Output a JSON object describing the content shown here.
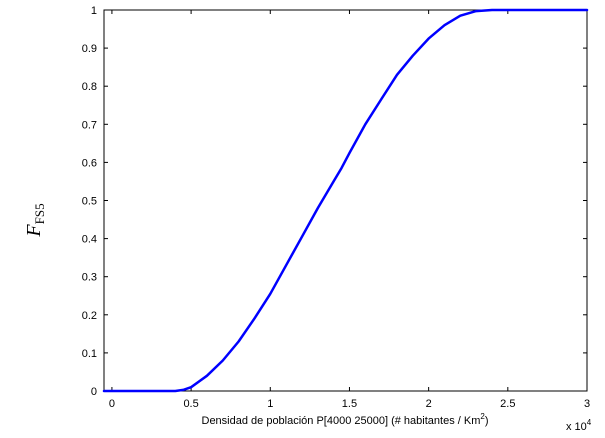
{
  "chart_data": {
    "type": "line",
    "title": "",
    "xlabel": {
      "main": "Densidad de población  P[4000 25000] (# habitantes / Km",
      "sup": "2",
      "end": ")"
    },
    "ylabel": {
      "main": "F",
      "sub": "FS5"
    },
    "x_multiplier": {
      "base": "x 10",
      "exp": "4"
    },
    "xlim": [
      -0.05,
      3
    ],
    "ylim": [
      0,
      1
    ],
    "xticks": [
      0,
      0.5,
      1,
      1.5,
      2,
      2.5,
      3
    ],
    "xtick_labels": [
      "0",
      "0.5",
      "1",
      "1.5",
      "2",
      "2.5",
      "3"
    ],
    "yticks": [
      0,
      0.1,
      0.2,
      0.3,
      0.4,
      0.5,
      0.6,
      0.7,
      0.8,
      0.9,
      1
    ],
    "ytick_labels": [
      "0",
      "0.1",
      "0.2",
      "0.3",
      "0.4",
      "0.5",
      "0.6",
      "0.7",
      "0.8",
      "0.9",
      "1"
    ],
    "grid": false,
    "series": [
      {
        "color": "#0000ff",
        "x": [
          -0.05,
          0.4,
          0.45,
          0.5,
          0.6,
          0.7,
          0.8,
          0.9,
          1.0,
          1.1,
          1.2,
          1.3,
          1.4,
          1.45,
          1.5,
          1.6,
          1.7,
          1.8,
          1.9,
          2.0,
          2.1,
          2.2,
          2.3,
          2.4,
          2.45,
          2.5,
          3.0
        ],
        "y": [
          0,
          0,
          0.003,
          0.01,
          0.04,
          0.08,
          0.13,
          0.19,
          0.255,
          0.33,
          0.405,
          0.48,
          0.55,
          0.585,
          0.625,
          0.7,
          0.765,
          0.83,
          0.88,
          0.925,
          0.96,
          0.985,
          0.997,
          1.0,
          1.0,
          1.0,
          1.0
        ]
      }
    ]
  }
}
